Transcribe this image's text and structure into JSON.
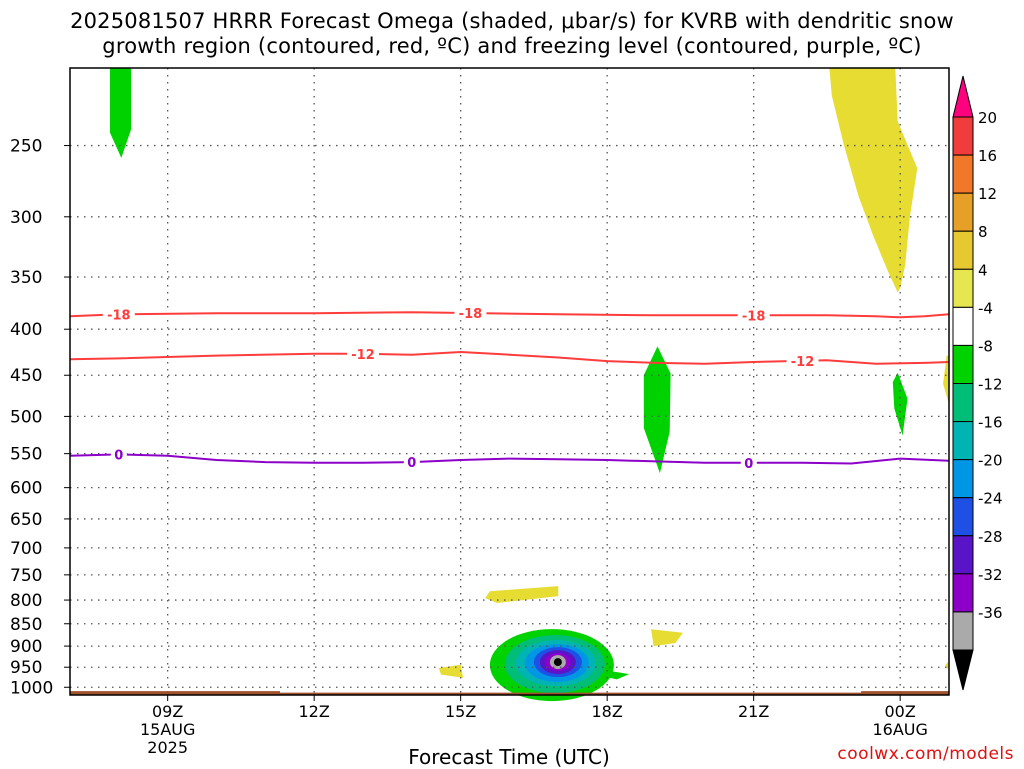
{
  "header": {
    "title_line1": "2025081507 HRRR Forecast Omega (shaded, μbar/s) for KVRB with dendritic snow",
    "title_line2": "growth region (contoured, red, ºC) and freezing level (contoured, purple, ºC)"
  },
  "footer": {
    "credit": "coolwx.com/models"
  },
  "chart_data": {
    "type": "heatmap",
    "title": "2025081507 HRRR Forecast Omega (shaded, μbar/s) for KVRB with dendritic snow growth region (contoured, red, ºC) and freezing level (contoured, purple, ºC)",
    "xlabel": "Forecast Time (UTC)",
    "ylabel": "",
    "x_range_hours_utc": [
      7.0,
      25.0
    ],
    "y_scale": "log-pressure (inverted)",
    "ylim": [
      1020,
      205
    ],
    "grid": true,
    "y_ticks": [
      250,
      300,
      350,
      400,
      450,
      500,
      550,
      600,
      650,
      700,
      750,
      800,
      850,
      900,
      950,
      1000
    ],
    "y_tick_labels": [
      "250",
      "300",
      "350",
      "400",
      "450",
      "500",
      "550",
      "600",
      "650",
      "700",
      "750",
      "800",
      "850",
      "900",
      "950",
      "1000"
    ],
    "x_ticks": [
      {
        "hour": 9,
        "label": "09Z",
        "sublabels": [
          "15AUG",
          "2025"
        ]
      },
      {
        "hour": 12,
        "label": "12Z",
        "sublabels": []
      },
      {
        "hour": 15,
        "label": "15Z",
        "sublabels": []
      },
      {
        "hour": 18,
        "label": "18Z",
        "sublabels": []
      },
      {
        "hour": 21,
        "label": "21Z",
        "sublabels": []
      },
      {
        "hour": 24,
        "label": "00Z",
        "sublabels": [
          "16AUG"
        ]
      }
    ],
    "colorbar": {
      "labels": [
        "20",
        "16",
        "12",
        "8",
        "4",
        "-4",
        "-8",
        "-12",
        "-16",
        "-20",
        "-24",
        "-28",
        "-32",
        "-36"
      ],
      "colors": [
        "#ff007f",
        "#f03c3c",
        "#f07828",
        "#e6a028",
        "#e6c830",
        "#e6e650",
        "#ffffff",
        "#00d200",
        "#00be78",
        "#00b4b4",
        "#0096e6",
        "#1e50e6",
        "#5a14c8",
        "#8c00c8",
        "#aaaaaa",
        "#000000"
      ]
    },
    "contours": [
      {
        "name": "-18",
        "color": "#ff3c3c",
        "points": [
          [
            7.0,
            387
          ],
          [
            8.0,
            385
          ],
          [
            10.0,
            384
          ],
          [
            12.0,
            384
          ],
          [
            14.0,
            383
          ],
          [
            15.5,
            384
          ],
          [
            17.0,
            385
          ],
          [
            19.0,
            386
          ],
          [
            21.0,
            386
          ],
          [
            22.5,
            386
          ],
          [
            23.5,
            387
          ],
          [
            24.0,
            388
          ],
          [
            24.5,
            387
          ],
          [
            25.0,
            385
          ]
        ],
        "label_hours": [
          8.0,
          15.2,
          21.0
        ]
      },
      {
        "name": "-12",
        "color": "#ff3c3c",
        "points": [
          [
            7.0,
            432
          ],
          [
            8.0,
            431
          ],
          [
            10.0,
            428
          ],
          [
            12.0,
            426
          ],
          [
            13.0,
            426
          ],
          [
            14.0,
            427
          ],
          [
            15.0,
            424
          ],
          [
            16.0,
            427
          ],
          [
            17.0,
            430
          ],
          [
            18.0,
            434
          ],
          [
            19.0,
            436
          ],
          [
            20.0,
            437
          ],
          [
            21.0,
            435
          ],
          [
            22.5,
            433
          ],
          [
            23.5,
            437
          ],
          [
            24.5,
            436
          ],
          [
            25.0,
            435
          ]
        ],
        "label_hours": [
          13.0,
          22.0
        ]
      },
      {
        "name": "0",
        "color": "#8c00c8",
        "points": [
          [
            7.0,
            553
          ],
          [
            8.0,
            551
          ],
          [
            9.0,
            553
          ],
          [
            10.0,
            559
          ],
          [
            11.0,
            562
          ],
          [
            12.0,
            563
          ],
          [
            13.0,
            563
          ],
          [
            14.0,
            562
          ],
          [
            15.0,
            559
          ],
          [
            16.0,
            557
          ],
          [
            17.0,
            558
          ],
          [
            18.0,
            559
          ],
          [
            19.0,
            561
          ],
          [
            20.0,
            563
          ],
          [
            21.0,
            563
          ],
          [
            22.0,
            563
          ],
          [
            23.0,
            564
          ],
          [
            24.0,
            557
          ],
          [
            25.0,
            560
          ]
        ],
        "label_hours": [
          8.0,
          14.0,
          20.9
        ]
      }
    ],
    "shaded_regions": [
      {
        "name": "ascent-core",
        "value_range": [
          -36,
          -4
        ],
        "center": [
          16.95,
          940
        ],
        "level": -36
      },
      {
        "name": "descent-upper",
        "value_range": [
          4,
          8
        ],
        "hours": [
          22.5,
          24.2
        ],
        "pressure": [
          205,
          360
        ]
      },
      {
        "name": "ascent-upper",
        "value_range": [
          -8,
          -4
        ],
        "hours": [
          7.8,
          8.3
        ],
        "pressure": [
          205,
          255
        ]
      },
      {
        "name": "ascent-mid",
        "value_range": [
          -8,
          -4
        ],
        "hours": [
          18.7,
          19.3
        ],
        "pressure": [
          420,
          580
        ]
      }
    ],
    "terrain": {
      "color": "#a0522d",
      "surface_pressure": 1010
    }
  }
}
